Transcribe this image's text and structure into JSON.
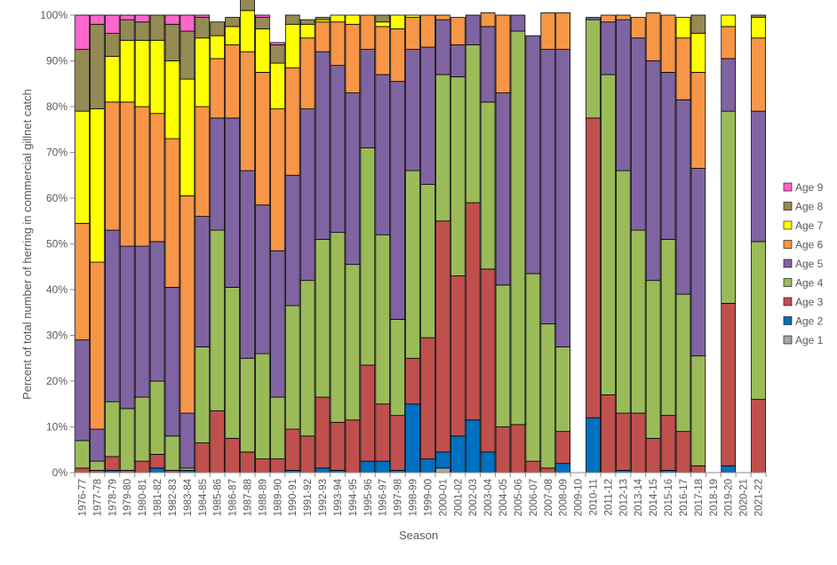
{
  "chart_data": {
    "type": "bar",
    "stacked": true,
    "percent": true,
    "title": "",
    "xlabel": "Season",
    "ylabel": "Percent of total number of herring in commercial gillnet catch",
    "ylim": [
      0,
      100
    ],
    "yticks": [
      "0%",
      "10%",
      "20%",
      "30%",
      "40%",
      "50%",
      "60%",
      "70%",
      "80%",
      "90%",
      "100%"
    ],
    "legend_position": "right",
    "categories": [
      "1976-77",
      "1977-78",
      "1978-79",
      "1979-80",
      "1980-81",
      "1981-82",
      "1982-83",
      "1983-84",
      "1984-85",
      "1985-86",
      "1986-87",
      "1987-88",
      "1988-89",
      "1989-90",
      "1990-91",
      "1991-92",
      "1992-93",
      "1993-94",
      "1994-95",
      "1995-96",
      "1996-97",
      "1997-98",
      "1998-99",
      "1999-00",
      "2000-01",
      "2001-02",
      "2002-03",
      "2003-04",
      "2004-05",
      "2005-06",
      "2006-07",
      "2007-08",
      "2008-09",
      "2009-10",
      "2010-11",
      "2011-12",
      "2012-13",
      "2013-14",
      "2014-15",
      "2015-16",
      "2016-17",
      "2017-18",
      "2018-19",
      "2019-20",
      "2020-21",
      "2021-22"
    ],
    "series": [
      {
        "name": "Age 1",
        "color": "#a5a5a5",
        "values": [
          0,
          0,
          0,
          0,
          0,
          0,
          0,
          0,
          0,
          0,
          0,
          0,
          0,
          0,
          0,
          0,
          0,
          0,
          0,
          0,
          0,
          0,
          0,
          0,
          1,
          0,
          0,
          0,
          0,
          0,
          0,
          0,
          0,
          0,
          0,
          0,
          0,
          0,
          0,
          0,
          0,
          0,
          0,
          0,
          0,
          0
        ]
      },
      {
        "name": "Age 2",
        "color": "#0070c0",
        "values": [
          0,
          0,
          0.5,
          0,
          0,
          1,
          0,
          0.5,
          0,
          0,
          0,
          0,
          0,
          0,
          0.5,
          0,
          1,
          0.5,
          0,
          2.5,
          2.5,
          0.5,
          15,
          3,
          3.5,
          8,
          11.5,
          4.5,
          0,
          0,
          0,
          0,
          2,
          0,
          12,
          0,
          0.5,
          0,
          0,
          0.5,
          0,
          0,
          0,
          1.5,
          0,
          0
        ]
      },
      {
        "name": "Age 3",
        "color": "#c0504d",
        "values": [
          1,
          0.5,
          3,
          0.5,
          2.5,
          3,
          0.5,
          0,
          6.5,
          13.5,
          7.5,
          4.5,
          3,
          3,
          9,
          8,
          15.5,
          10.5,
          11.5,
          21,
          12.5,
          12,
          10,
          26.5,
          50.5,
          35,
          47.5,
          40,
          10,
          10.5,
          2.5,
          1,
          7,
          0,
          65.5,
          17,
          12.5,
          13,
          7.5,
          12,
          9,
          1.5,
          0,
          35.5,
          0,
          16
        ]
      },
      {
        "name": "Age 4",
        "color": "#9bbb59",
        "values": [
          6,
          2,
          12,
          13.5,
          14,
          16,
          7.5,
          0.5,
          21,
          39.5,
          33,
          20.5,
          23,
          13.5,
          27,
          34,
          34.5,
          41.5,
          34,
          47.5,
          37,
          21,
          41,
          33.5,
          32,
          43.5,
          34.5,
          36.5,
          31,
          86,
          41,
          31.5,
          18.5,
          0,
          21.5,
          70,
          53,
          40,
          34.5,
          38.5,
          30,
          24,
          0,
          42,
          0,
          34.5
        ]
      },
      {
        "name": "Age 5",
        "color": "#8064a2",
        "values": [
          22,
          7,
          37.5,
          35.5,
          33,
          30.5,
          32.5,
          12,
          28.5,
          24.5,
          37,
          41,
          32.5,
          32,
          28.5,
          37.5,
          41,
          36.5,
          37.5,
          21.5,
          35,
          52,
          26.5,
          30,
          12,
          7,
          6.5,
          16.5,
          42,
          3.5,
          52,
          60,
          65,
          0,
          0.5,
          11.5,
          33,
          42,
          48,
          36.5,
          42.5,
          41,
          0,
          11.5,
          0,
          28.5
        ]
      },
      {
        "name": "Age 6",
        "color": "#f79646",
        "values": [
          25.5,
          36.5,
          28,
          31.5,
          30.5,
          28,
          32.5,
          47.5,
          24,
          13,
          16,
          26,
          29,
          31,
          23.5,
          15.5,
          6.5,
          9.5,
          15,
          7.5,
          10.5,
          11.5,
          7,
          7,
          1,
          6,
          0,
          3,
          17,
          0,
          0,
          8,
          8,
          0,
          0,
          1.5,
          1,
          4.5,
          10.5,
          12.5,
          13.5,
          21,
          0,
          7,
          0,
          16
        ]
      },
      {
        "name": "Age 7",
        "color": "#ffff00",
        "values": [
          24.5,
          33.5,
          10,
          13.5,
          14.5,
          16,
          17,
          25.5,
          15,
          5,
          4,
          9,
          9.5,
          10,
          9.5,
          3,
          0.5,
          1.5,
          2,
          0,
          1,
          3,
          0.5,
          0,
          0,
          0,
          0,
          0,
          0,
          0,
          0,
          0,
          0,
          0,
          0,
          0,
          0,
          0,
          0,
          0,
          4.5,
          8.5,
          0,
          2.5,
          0,
          4.5
        ]
      },
      {
        "name": "Age 8",
        "color": "#948a54",
        "values": [
          13.5,
          18.5,
          5,
          4.5,
          4,
          5.5,
          8,
          10.5,
          4.5,
          3,
          2,
          2.5,
          2.5,
          4,
          2,
          1,
          0.5,
          0,
          0,
          0,
          1.5,
          0,
          0,
          0,
          0,
          0,
          0,
          0,
          0,
          0,
          0,
          0,
          0,
          0,
          0,
          0,
          0,
          0,
          0,
          0,
          0,
          4,
          0,
          0,
          0,
          0.5
        ]
      },
      {
        "name": "Age 9",
        "color": "#ff66cc",
        "values": [
          7.5,
          2,
          4,
          1,
          1.5,
          0,
          2,
          3.5,
          0.5,
          0,
          0,
          0,
          0.5,
          0.5,
          0,
          0,
          0,
          0,
          0,
          0,
          0,
          0,
          0,
          0,
          0,
          0,
          0,
          0,
          0,
          0,
          0,
          0,
          0,
          0,
          0,
          0,
          0,
          0,
          0,
          0,
          0,
          0,
          0,
          0,
          0,
          0
        ]
      }
    ]
  }
}
